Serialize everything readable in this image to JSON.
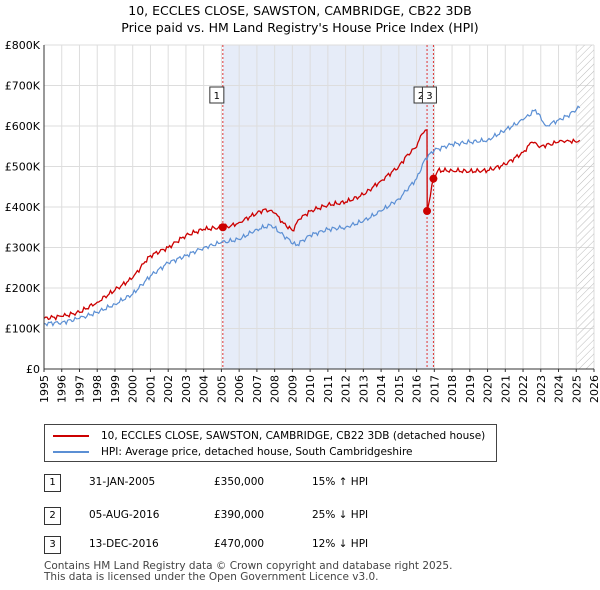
{
  "header": {
    "title_line1": "10, ECCLES CLOSE, SAWSTON, CAMBRIDGE, CB22 3DB",
    "title_line2": "Price paid vs. HM Land Registry's House Price Index (HPI)"
  },
  "chart_data": {
    "type": "line",
    "ylim": [
      0,
      800000
    ],
    "xlim": [
      1995,
      2026
    ],
    "y_ticks": [
      {
        "value": 0,
        "label": "£0"
      },
      {
        "value": 100000,
        "label": "£100K"
      },
      {
        "value": 200000,
        "label": "£200K"
      },
      {
        "value": 300000,
        "label": "£300K"
      },
      {
        "value": 400000,
        "label": "£400K"
      },
      {
        "value": 500000,
        "label": "£500K"
      },
      {
        "value": 600000,
        "label": "£600K"
      },
      {
        "value": 700000,
        "label": "£700K"
      },
      {
        "value": 800000,
        "label": "£800K"
      }
    ],
    "x_ticks": [
      "1995",
      "1996",
      "1997",
      "1998",
      "1999",
      "2000",
      "2001",
      "2002",
      "2003",
      "2004",
      "2005",
      "2006",
      "2007",
      "2008",
      "2009",
      "2010",
      "2011",
      "2012",
      "2013",
      "2014",
      "2015",
      "2016",
      "2017",
      "2018",
      "2019",
      "2020",
      "2021",
      "2022",
      "2023",
      "2024",
      "2025",
      "2026"
    ],
    "forecast_start": 2025.05,
    "series": [
      {
        "name": "10, ECCLES CLOSE, SAWSTON, CAMBRIDGE, CB22 3DB (detached house)",
        "color": "#cc0000",
        "x": [
          1995,
          1996,
          1997,
          1998,
          1999,
          2000,
          2000.7,
          2001,
          2002,
          2003,
          2004,
          2005.08,
          2005.5,
          2006,
          2007,
          2007.5,
          2008,
          2008.5,
          2009,
          2009.4,
          2010,
          2011,
          2012,
          2013,
          2014,
          2015,
          2015.5,
          2016,
          2016.3,
          2016.59,
          2016.6,
          2016.95,
          2017.2,
          2018,
          2019,
          2020,
          2021,
          2022,
          2022.5,
          2023,
          2023.5,
          2024,
          2024.5,
          2025,
          2025.2
        ],
        "values": [
          125000,
          130000,
          140000,
          165000,
          195000,
          225000,
          265000,
          280000,
          300000,
          330000,
          345000,
          350000,
          352000,
          362000,
          385000,
          395000,
          385000,
          360000,
          342000,
          370000,
          390000,
          405000,
          412000,
          430000,
          465000,
          500000,
          530000,
          548000,
          580000,
          590000,
          390000,
          470000,
          490000,
          490000,
          488000,
          490000,
          505000,
          535000,
          560000,
          550000,
          555000,
          560000,
          565000,
          560000,
          565000
        ]
      },
      {
        "name": "HPI: Average price, detached house, South Cambridgeshire",
        "color": "#5b8fd4",
        "x": [
          1995,
          1996,
          1997,
          1998,
          1999,
          2000,
          2001,
          2002,
          2003,
          2004,
          2005,
          2006,
          2007,
          2007.8,
          2008.5,
          2009.2,
          2010,
          2011,
          2012,
          2013,
          2014,
          2015,
          2016,
          2016.5,
          2017,
          2018,
          2019,
          2020,
          2021,
          2022,
          2022.7,
          2023.3,
          2024,
          2024.5,
          2025,
          2025.2
        ],
        "values": [
          112000,
          115000,
          125000,
          140000,
          160000,
          185000,
          230000,
          262000,
          280000,
          300000,
          312000,
          320000,
          345000,
          355000,
          330000,
          305000,
          330000,
          345000,
          350000,
          365000,
          390000,
          420000,
          470000,
          520000,
          540000,
          555000,
          560000,
          565000,
          590000,
          615000,
          640000,
          600000,
          615000,
          625000,
          640000,
          645000
        ]
      }
    ],
    "sales": [
      {
        "id": "1",
        "x": 2005.08,
        "value": 350000
      },
      {
        "id": "2",
        "x": 2016.59,
        "value": 390000
      },
      {
        "id": "3",
        "x": 2016.95,
        "value": 470000
      }
    ]
  },
  "legend": {
    "property_label": "10, ECCLES CLOSE, SAWSTON, CAMBRIDGE, CB22 3DB (detached house)",
    "hpi_label": "HPI: Average price, detached house, South Cambridgeshire"
  },
  "sales_table": [
    {
      "num": "1",
      "date": "31-JAN-2005",
      "price": "£350,000",
      "hpi": "15% ↑ HPI"
    },
    {
      "num": "2",
      "date": "05-AUG-2016",
      "price": "£390,000",
      "hpi": "25% ↓ HPI"
    },
    {
      "num": "3",
      "date": "13-DEC-2016",
      "price": "£470,000",
      "hpi": "12% ↓ HPI"
    }
  ],
  "footer": {
    "line1": "Contains HM Land Registry data © Crown copyright and database right 2025.",
    "line2": "This data is licensed under the Open Government Licence v3.0."
  },
  "colors": {
    "property": "#cc0000",
    "hpi": "#5b8fd4",
    "highlight": "#e6ecf8",
    "grid": "#dddddd"
  }
}
